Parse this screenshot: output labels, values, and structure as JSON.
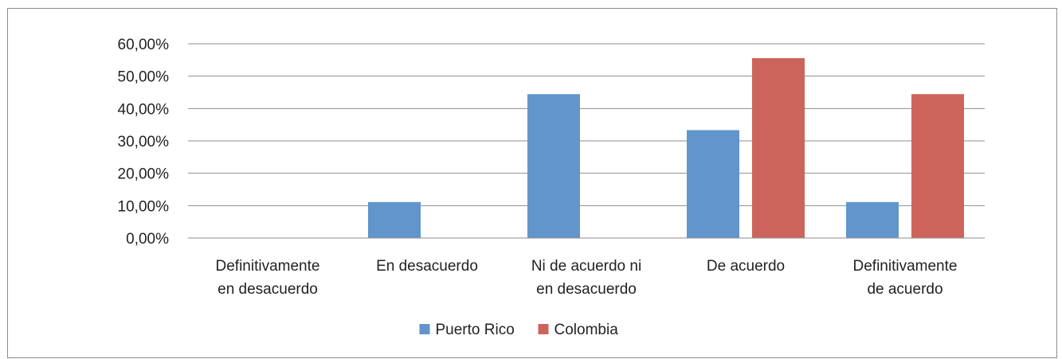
{
  "chart_data": {
    "type": "bar",
    "categories": [
      [
        "Definitivamente",
        "en desacuerdo"
      ],
      [
        "En desacuerdo"
      ],
      [
        "Ni de acuerdo ni",
        "en desacuerdo"
      ],
      [
        "De acuerdo"
      ],
      [
        "Definitivamente",
        "de acuerdo"
      ]
    ],
    "series": [
      {
        "name": "Puerto Rico",
        "color": "#6195cc",
        "values": [
          0,
          11.11,
          44.44,
          33.33,
          11.11
        ]
      },
      {
        "name": "Colombia",
        "color": "#cd645b",
        "values": [
          0,
          0,
          0,
          55.56,
          44.44
        ]
      }
    ],
    "ylim": [
      0,
      60
    ],
    "yticks": [
      "0,00%",
      "10,00%",
      "20,00%",
      "30,00%",
      "40,00%",
      "50,00%",
      "60,00%"
    ],
    "grid": true,
    "legend_position": "bottom"
  }
}
